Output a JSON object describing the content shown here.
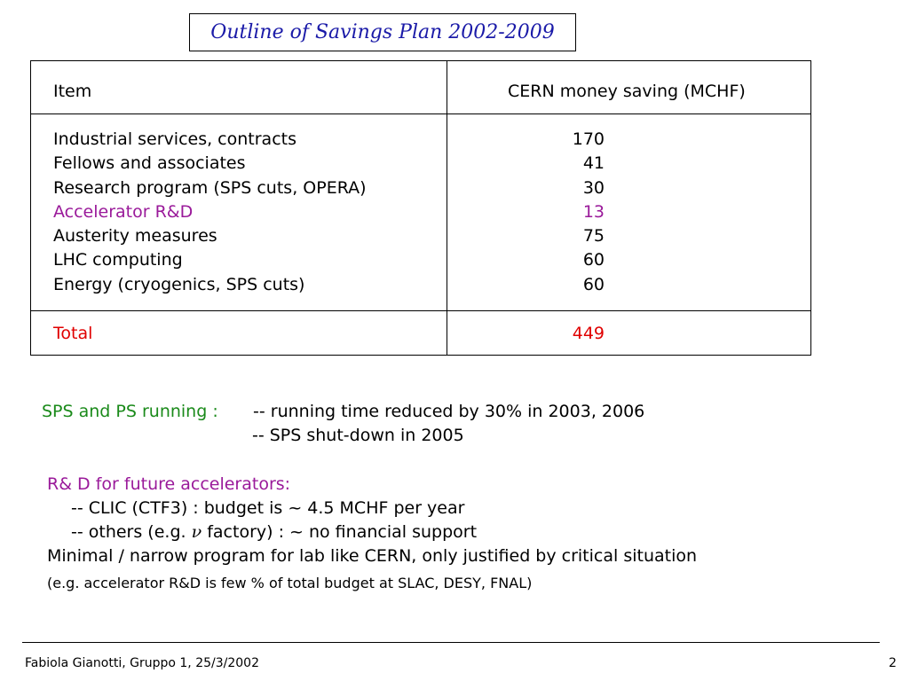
{
  "title": "Outline of Savings Plan 2002-2009",
  "table": {
    "header_item": "Item",
    "header_saving": "CERN money saving (MCHF)",
    "rows": [
      {
        "item": "Industrial services, contracts",
        "value": "170"
      },
      {
        "item": "Fellows and associates",
        "value": "41"
      },
      {
        "item": "Research program (SPS cuts, OPERA)",
        "value": "30"
      },
      {
        "item": "Accelerator R&D",
        "value": "13"
      },
      {
        "item": "Austerity measures",
        "value": "75"
      },
      {
        "item": "LHC computing",
        "value": "60"
      },
      {
        "item": "Energy (cryogenics, SPS cuts)",
        "value": "60"
      }
    ],
    "total_label": "Total",
    "total_value": "449"
  },
  "notes": {
    "sps_label": "SPS and  PS running :",
    "sps_line1": "-- running time  reduced by 30%  in  2003, 2006",
    "sps_line2": "-- SPS  shut-down in 2005",
    "rd_title": "R& D for future accelerators:",
    "rd_line1": "-- CLIC (CTF3) : budget is ~ 4.5 MCHF per year",
    "rd_line2_before": "-- others (e.g.",
    "rd_line2_symbol": "ν",
    "rd_line2_after": "factory) : ~ no financial support",
    "minimal": "Minimal / narrow program for lab like CERN, only justified by critical situation",
    "eg": "(e.g.  accelerator R&D is  few % of total budget at SLAC, DESY, FNAL)"
  },
  "footer": {
    "left": "Fabiola Gianotti,  Gruppo 1, 25/3/2002",
    "page_number": "2"
  },
  "colors": {
    "title": "#1a1aa8",
    "accelerator_highlight": "#9a1a9a",
    "total_highlight": "#e00000",
    "sps_label": "#1a8a1a"
  }
}
